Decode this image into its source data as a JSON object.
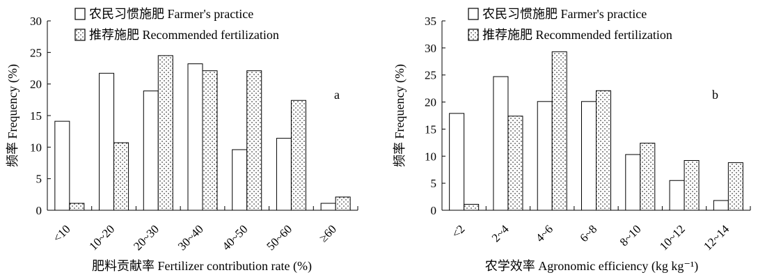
{
  "chart_data": [
    {
      "type": "bar",
      "panel_label": "a",
      "xlabel": "肥料贡献率 Fertilizer contribution rate (%)",
      "ylabel": "频率 Frequency (%)",
      "ylim": [
        0,
        30
      ],
      "yticks": [
        "0",
        "5",
        "10",
        "15",
        "20",
        "25",
        "30"
      ],
      "categories": [
        "<10",
        "10~20",
        "20~30",
        "30~40",
        "40~50",
        "50~60",
        "≥60"
      ],
      "series": [
        {
          "name": "农民习惯施肥 Farmer's practice",
          "pattern": "open",
          "values": [
            14.1,
            21.7,
            18.9,
            23.2,
            9.6,
            11.4,
            1.1
          ]
        },
        {
          "name": "推荐施肥 Recommended fertilization",
          "pattern": "dotted",
          "values": [
            1.1,
            10.7,
            24.5,
            22.1,
            22.1,
            17.4,
            2.1
          ]
        }
      ],
      "grid": false,
      "legend_position": "top-left"
    },
    {
      "type": "bar",
      "panel_label": "b",
      "xlabel": "农学效率 Agronomic efficiency (kg kg⁻¹)",
      "ylabel": "频率 Frequency (%)",
      "ylim": [
        0,
        35
      ],
      "yticks": [
        "0",
        "5",
        "10",
        "15",
        "20",
        "25",
        "30",
        "35"
      ],
      "categories": [
        "<2",
        "2~4",
        "4~6",
        "6~8",
        "8~10",
        "10~12",
        "12~14"
      ],
      "series": [
        {
          "name": "农民习惯施肥 Farmer's practice",
          "pattern": "open",
          "values": [
            17.9,
            24.7,
            20.1,
            20.1,
            10.3,
            5.5,
            1.8
          ]
        },
        {
          "name": "推荐施肥 Recommended fertilization",
          "pattern": "dotted",
          "values": [
            1.1,
            17.4,
            29.3,
            22.1,
            12.4,
            9.2,
            8.8
          ]
        }
      ],
      "grid": false,
      "legend_position": "top-left"
    }
  ]
}
